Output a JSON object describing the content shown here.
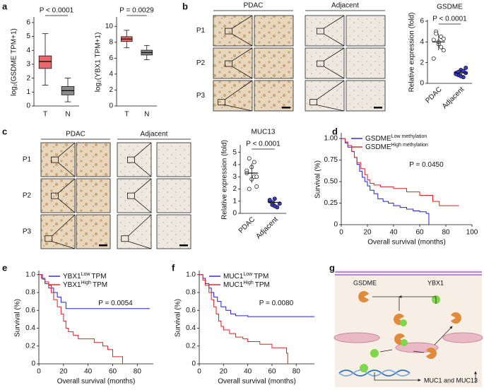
{
  "panel_labels": [
    "a",
    "b",
    "c",
    "d",
    "e",
    "f",
    "g"
  ],
  "chart_data": [
    {
      "type": "box",
      "ylabel": "log₂(GSDME TPM+1)",
      "categories": [
        "T",
        "N"
      ],
      "boxes": [
        {
          "whisker_low": 1.5,
          "q1": 2.7,
          "median": 3.2,
          "q3": 3.6,
          "whisker_high": 5.2
        },
        {
          "whisker_low": 0.3,
          "q1": 0.8,
          "median": 1.1,
          "q3": 1.4,
          "whisker_high": 2.0
        }
      ],
      "colors": [
        "#e8696b",
        "#8c8c8c"
      ],
      "ylim": [
        0,
        6.3
      ],
      "yticks": [
        0,
        1,
        2,
        3,
        4,
        5,
        6
      ],
      "annotation": "P < 0.0001"
    },
    {
      "type": "box",
      "ylabel": "log₂(YBX1 TPM+1)",
      "categories": [
        "T",
        "N"
      ],
      "boxes": [
        {
          "whisker_low": 7.3,
          "q1": 8.1,
          "median": 8.4,
          "q3": 8.7,
          "whisker_high": 9.5
        },
        {
          "whisker_low": 5.8,
          "q1": 6.4,
          "median": 6.7,
          "q3": 7.0,
          "whisker_high": 7.6
        }
      ],
      "colors": [
        "#e8696b",
        "#8c8c8c"
      ],
      "ylim": [
        0,
        11
      ],
      "yticks": [
        0,
        2,
        4,
        6,
        8,
        10
      ],
      "annotation": "P = 0.0029"
    },
    {
      "type": "dot",
      "title": "GSDME",
      "ylabel": "Relative expression (fold)",
      "categories": [
        "PDAC",
        "Adjacent"
      ],
      "groups": [
        {
          "values": [
            4.2,
            5.0,
            3.8,
            4.5,
            3.2,
            2.4,
            4.8,
            4.0,
            3.5,
            4.3
          ],
          "mean": 4.0,
          "sd": 0.8
        },
        {
          "values": [
            1.0,
            0.8,
            1.3,
            0.6,
            1.5,
            0.9,
            1.1,
            0.7,
            1.2,
            1.0
          ],
          "mean": 1.0,
          "sd": 0.3
        }
      ],
      "marker_colors": [
        "#ffffff",
        "#3a3ad6"
      ],
      "ylim": [
        0,
        6
      ],
      "yticks": [
        0,
        2,
        4,
        6
      ],
      "annotation": "P < 0.0001"
    },
    {
      "type": "dot",
      "title": "MUC13",
      "ylabel": "Relative expression (fold)",
      "categories": [
        "PDAC",
        "Adjacent"
      ],
      "groups": [
        {
          "values": [
            3.5,
            4.5,
            2.8,
            3.0,
            2.2,
            3.3,
            2.0,
            3.8,
            4.2,
            3.0
          ],
          "mean": 3.3,
          "sd": 0.8
        },
        {
          "values": [
            1.0,
            0.7,
            1.2,
            0.5,
            0.8,
            1.1,
            0.9,
            0.6
          ],
          "mean": 0.9,
          "sd": 0.25
        }
      ],
      "marker_colors": [
        "#ffffff",
        "#3a3ad6"
      ],
      "ylim": [
        0,
        5.5
      ],
      "yticks": [
        0,
        1,
        2,
        3,
        4,
        5
      ],
      "annotation": "P < 0.0001"
    },
    {
      "type": "survival",
      "ylabel": "Survival (%)",
      "xlabel": "Overall survival (months)",
      "xlim": [
        0,
        100
      ],
      "xticks": [
        0,
        20,
        40,
        60,
        80,
        100
      ],
      "ylim": [
        0,
        1.05
      ],
      "yticks": [
        0,
        0.25,
        {
          "value": 0.5,
          "label": "0.50"
        },
        0.75,
        {
          "value": 1,
          "label": "1.00"
        }
      ],
      "annotation": "P = 0.0450",
      "series": [
        {
          "name": "GSDME",
          "name_superscript": "Low methylation",
          "color": "#2020e0",
          "x": [
            0,
            3,
            5,
            8,
            10,
            12,
            14,
            16,
            18,
            20,
            22,
            25,
            28,
            32,
            36,
            40,
            45,
            50,
            55,
            60,
            65,
            67
          ],
          "values": [
            1,
            0.95,
            0.9,
            0.85,
            0.78,
            0.7,
            0.62,
            0.55,
            0.5,
            0.45,
            0.4,
            0.36,
            0.3,
            0.27,
            0.25,
            0.22,
            0.2,
            0.18,
            0.16,
            0.15,
            0.13,
            0
          ]
        },
        {
          "name": "GSDME",
          "name_superscript": "High methylation",
          "color": "#e02020",
          "x": [
            0,
            3,
            5,
            8,
            10,
            12,
            15,
            18,
            20,
            22,
            25,
            30,
            35,
            40,
            50,
            60,
            70,
            75,
            90
          ],
          "values": [
            1,
            0.96,
            0.92,
            0.85,
            0.78,
            0.72,
            0.65,
            0.58,
            0.52,
            0.48,
            0.46,
            0.44,
            0.44,
            0.42,
            0.38,
            0.34,
            0.27,
            0.22,
            0.22
          ]
        }
      ]
    },
    {
      "type": "survival",
      "ylabel": "Survival (%)",
      "xlabel": "Overall survival (months)",
      "xlim": [
        0,
        93
      ],
      "xticks": [
        0,
        20,
        40,
        60,
        80
      ],
      "ylim": [
        0,
        1.03
      ],
      "yticks": [
        0,
        0.2,
        0.4,
        0.6,
        0.8,
        {
          "value": 1,
          "label": "1.0"
        }
      ],
      "annotation": "P = 0.0054",
      "series": [
        {
          "name": "YBX1",
          "name_superscript": "Low",
          "name_suffix": "TPM",
          "color": "#2020e0",
          "x": [
            0,
            3,
            5,
            8,
            12,
            15,
            18,
            22,
            90
          ],
          "values": [
            1,
            0.95,
            0.9,
            0.85,
            0.8,
            0.75,
            0.69,
            0.62,
            0.62
          ]
        },
        {
          "name": "YBX1",
          "name_superscript": "High",
          "name_suffix": "TPM",
          "color": "#e02020",
          "x": [
            0,
            2,
            5,
            8,
            10,
            12,
            15,
            18,
            20,
            22,
            24,
            28,
            32,
            45,
            52,
            56,
            60,
            68
          ],
          "values": [
            1,
            0.96,
            0.92,
            0.88,
            0.8,
            0.72,
            0.64,
            0.56,
            0.48,
            0.4,
            0.36,
            0.32,
            0.28,
            0.24,
            0.2,
            0.16,
            0.08,
            0
          ]
        }
      ]
    },
    {
      "type": "survival",
      "ylabel": "Survival (%)",
      "xlabel": "Overall survival (months)",
      "xlim": [
        0,
        95
      ],
      "xticks": [
        0,
        20,
        40,
        60,
        80
      ],
      "ylim": [
        0,
        1.03
      ],
      "yticks": [
        0,
        0.2,
        0.4,
        0.6,
        0.8,
        {
          "value": 1,
          "label": "1.0"
        }
      ],
      "annotation": "P = 0.0080",
      "series": [
        {
          "name": "MUC1",
          "name_superscript": "Low",
          "name_suffix": "TPM",
          "color": "#2020e0",
          "x": [
            0,
            3,
            5,
            8,
            10,
            12,
            15,
            18,
            22,
            26,
            30,
            40,
            95
          ],
          "values": [
            1,
            0.96,
            0.9,
            0.85,
            0.8,
            0.75,
            0.7,
            0.64,
            0.6,
            0.56,
            0.54,
            0.53,
            0.53
          ]
        },
        {
          "name": "MUC1",
          "name_superscript": "High",
          "name_suffix": "TPM",
          "color": "#e02020",
          "x": [
            0,
            3,
            5,
            8,
            10,
            12,
            14,
            16,
            18,
            20,
            25,
            30,
            36,
            40,
            50,
            60,
            72,
            73
          ],
          "values": [
            1,
            0.94,
            0.88,
            0.8,
            0.72,
            0.64,
            0.56,
            0.48,
            0.42,
            0.38,
            0.34,
            0.3,
            0.28,
            0.25,
            0.22,
            0.18,
            0.12,
            0
          ]
        }
      ]
    }
  ],
  "micrographs": [
    {
      "columns": [
        "PDAC",
        "Adjacent"
      ],
      "rows": [
        "P1",
        "P2",
        "P3"
      ]
    },
    {
      "columns": [
        "PDAC",
        "Adjacent"
      ],
      "rows": [
        "P1",
        "P2",
        "P3"
      ]
    }
  ],
  "diagram": {
    "labels": [
      "GSDME",
      "YBX1"
    ],
    "gene_label": "MUC1 and MUC13"
  }
}
